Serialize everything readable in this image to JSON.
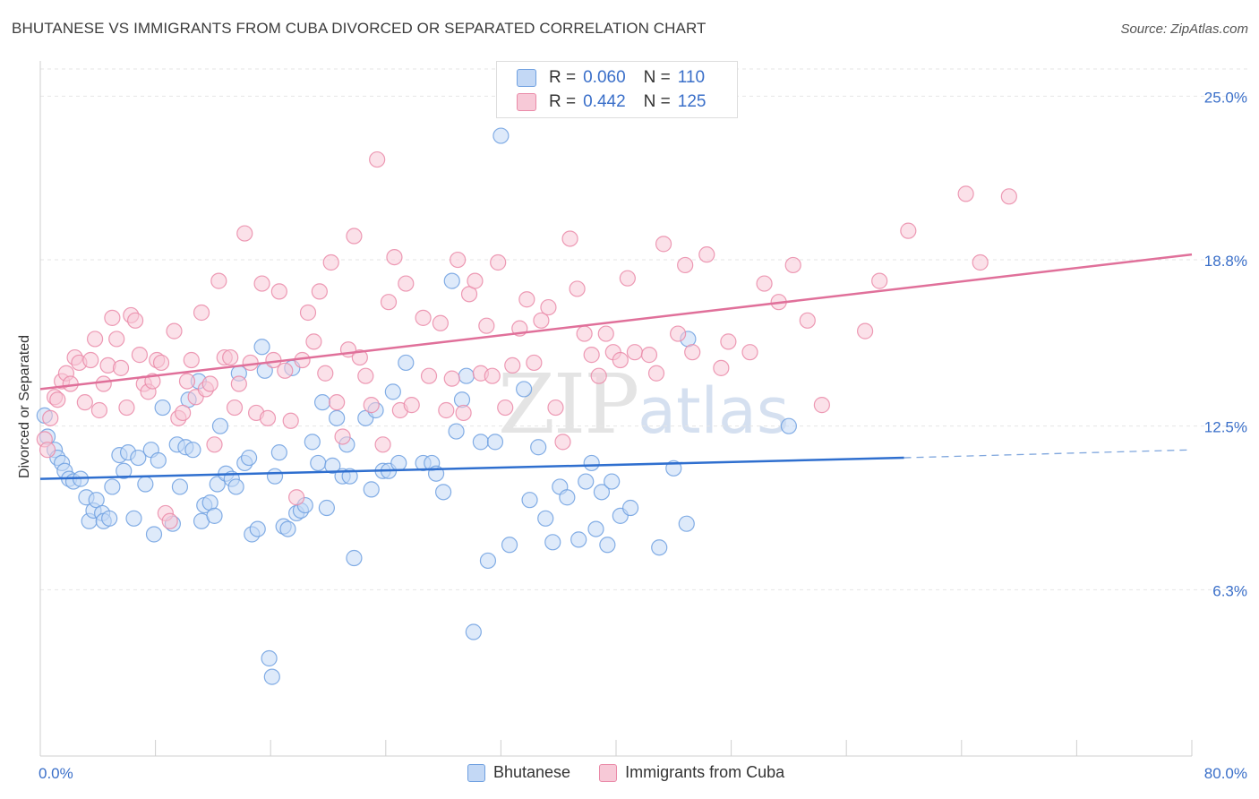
{
  "title": "BHUTANESE VS IMMIGRANTS FROM CUBA DIVORCED OR SEPARATED CORRELATION CHART",
  "source": "Source: ZipAtlas.com",
  "watermark": {
    "zip": "ZIP",
    "atlas": "atlas"
  },
  "stats": [
    {
      "r_label": "R =",
      "r_value": "0.060",
      "n_label": "N =",
      "n_value": "110",
      "color": "#a9c8f2"
    },
    {
      "r_label": "R =",
      "r_value": "0.442",
      "n_label": "N =",
      "n_value": "125",
      "color": "#f7b8cb"
    }
  ],
  "chart_data": {
    "type": "scatter",
    "title": "BHUTANESE VS IMMIGRANTS FROM CUBA DIVORCED OR SEPARATED CORRELATION CHART",
    "xlabel": "",
    "ylabel": "Divorced or Separated",
    "xlim": [
      0,
      80
    ],
    "ylim": [
      0,
      26.2
    ],
    "x_tick_labels": [
      "0.0%",
      "80.0%"
    ],
    "y_ticks": [
      6.3,
      12.5,
      18.8,
      25.0
    ],
    "y_tick_labels": [
      "6.3%",
      "12.5%",
      "18.8%",
      "25.0%"
    ],
    "grid": true,
    "legend_position": "bottom",
    "series": [
      {
        "name": "Bhutanese",
        "color": "#6fa0e0",
        "fill": "#c3d8f5",
        "trend": {
          "x": [
            0,
            60
          ],
          "y": [
            10.5,
            11.3
          ],
          "dash_to": [
            80,
            11.6
          ]
        },
        "points": [
          [
            0.3,
            12.9
          ],
          [
            0.5,
            12.1
          ],
          [
            1.0,
            11.6
          ],
          [
            1.2,
            11.3
          ],
          [
            1.5,
            11.1
          ],
          [
            1.7,
            10.8
          ],
          [
            2.0,
            10.5
          ],
          [
            2.3,
            10.4
          ],
          [
            2.8,
            10.5
          ],
          [
            3.2,
            9.8
          ],
          [
            3.4,
            8.9
          ],
          [
            3.7,
            9.3
          ],
          [
            3.9,
            9.7
          ],
          [
            4.3,
            9.2
          ],
          [
            4.4,
            8.9
          ],
          [
            4.8,
            9.0
          ],
          [
            5.0,
            10.2
          ],
          [
            5.5,
            11.4
          ],
          [
            5.8,
            10.8
          ],
          [
            6.1,
            11.5
          ],
          [
            6.5,
            9.0
          ],
          [
            6.8,
            11.3
          ],
          [
            7.3,
            10.3
          ],
          [
            7.7,
            11.6
          ],
          [
            7.9,
            8.4
          ],
          [
            8.2,
            11.2
          ],
          [
            8.5,
            13.2
          ],
          [
            9.2,
            8.8
          ],
          [
            9.5,
            11.8
          ],
          [
            9.7,
            10.2
          ],
          [
            10.1,
            11.7
          ],
          [
            10.3,
            13.5
          ],
          [
            10.6,
            11.6
          ],
          [
            11.0,
            14.2
          ],
          [
            11.2,
            8.9
          ],
          [
            11.4,
            9.5
          ],
          [
            11.8,
            9.6
          ],
          [
            12.1,
            9.1
          ],
          [
            12.3,
            10.3
          ],
          [
            12.5,
            12.5
          ],
          [
            12.9,
            10.7
          ],
          [
            13.3,
            10.5
          ],
          [
            13.6,
            10.2
          ],
          [
            13.8,
            14.5
          ],
          [
            14.2,
            11.1
          ],
          [
            14.5,
            11.3
          ],
          [
            14.7,
            8.4
          ],
          [
            15.1,
            8.6
          ],
          [
            15.4,
            15.5
          ],
          [
            15.6,
            14.6
          ],
          [
            15.9,
            3.7
          ],
          [
            16.1,
            3.0
          ],
          [
            16.3,
            10.6
          ],
          [
            16.6,
            11.5
          ],
          [
            16.9,
            8.7
          ],
          [
            17.2,
            8.6
          ],
          [
            17.5,
            14.7
          ],
          [
            17.8,
            9.2
          ],
          [
            18.1,
            9.3
          ],
          [
            18.4,
            9.5
          ],
          [
            18.9,
            11.9
          ],
          [
            19.3,
            11.1
          ],
          [
            19.6,
            13.4
          ],
          [
            19.9,
            9.4
          ],
          [
            20.3,
            11.0
          ],
          [
            20.6,
            12.8
          ],
          [
            21.0,
            10.6
          ],
          [
            21.3,
            11.8
          ],
          [
            21.5,
            10.6
          ],
          [
            21.8,
            7.5
          ],
          [
            22.6,
            12.8
          ],
          [
            23.0,
            10.1
          ],
          [
            23.3,
            13.1
          ],
          [
            23.8,
            10.8
          ],
          [
            24.2,
            10.8
          ],
          [
            24.5,
            13.8
          ],
          [
            24.9,
            11.1
          ],
          [
            25.4,
            14.9
          ],
          [
            26.6,
            11.1
          ],
          [
            27.2,
            11.1
          ],
          [
            27.5,
            10.7
          ],
          [
            28.0,
            10.0
          ],
          [
            28.6,
            18.0
          ],
          [
            28.9,
            12.3
          ],
          [
            29.3,
            13.5
          ],
          [
            29.6,
            14.4
          ],
          [
            30.1,
            4.7
          ],
          [
            30.6,
            11.9
          ],
          [
            31.1,
            7.4
          ],
          [
            31.6,
            11.9
          ],
          [
            32.0,
            23.5
          ],
          [
            32.6,
            8.0
          ],
          [
            33.6,
            13.9
          ],
          [
            34.0,
            9.7
          ],
          [
            34.6,
            11.7
          ],
          [
            35.1,
            9.0
          ],
          [
            35.6,
            8.1
          ],
          [
            36.1,
            10.2
          ],
          [
            36.6,
            9.8
          ],
          [
            37.4,
            8.2
          ],
          [
            37.9,
            10.4
          ],
          [
            38.3,
            11.1
          ],
          [
            38.6,
            8.6
          ],
          [
            39.0,
            10.0
          ],
          [
            39.4,
            8.0
          ],
          [
            39.7,
            10.4
          ],
          [
            40.3,
            9.1
          ],
          [
            41.0,
            9.4
          ],
          [
            43.0,
            7.9
          ],
          [
            44.0,
            10.9
          ],
          [
            44.9,
            8.8
          ],
          [
            45.0,
            15.8
          ],
          [
            52.0,
            12.5
          ]
        ]
      },
      {
        "name": "Immigrants from Cuba",
        "color": "#ea8aa8",
        "fill": "#f7c9d7",
        "trend": {
          "x": [
            0,
            80
          ],
          "y": [
            13.9,
            19.0
          ]
        },
        "points": [
          [
            0.3,
            12.0
          ],
          [
            0.5,
            11.6
          ],
          [
            0.7,
            12.8
          ],
          [
            1.0,
            13.6
          ],
          [
            1.2,
            13.5
          ],
          [
            1.5,
            14.2
          ],
          [
            1.8,
            14.5
          ],
          [
            2.1,
            14.1
          ],
          [
            2.4,
            15.1
          ],
          [
            2.7,
            14.9
          ],
          [
            3.1,
            13.4
          ],
          [
            3.5,
            15.0
          ],
          [
            3.8,
            15.8
          ],
          [
            4.1,
            13.1
          ],
          [
            4.4,
            14.1
          ],
          [
            4.7,
            14.8
          ],
          [
            5.0,
            16.6
          ],
          [
            5.3,
            15.8
          ],
          [
            5.6,
            14.7
          ],
          [
            6.0,
            13.2
          ],
          [
            6.3,
            16.7
          ],
          [
            6.6,
            16.5
          ],
          [
            6.9,
            15.2
          ],
          [
            7.2,
            14.1
          ],
          [
            7.5,
            13.8
          ],
          [
            7.8,
            14.2
          ],
          [
            8.1,
            15.0
          ],
          [
            8.4,
            14.9
          ],
          [
            8.7,
            9.2
          ],
          [
            9.0,
            8.9
          ],
          [
            9.3,
            16.1
          ],
          [
            9.6,
            12.8
          ],
          [
            9.9,
            13.0
          ],
          [
            10.2,
            14.2
          ],
          [
            10.5,
            15.0
          ],
          [
            10.8,
            13.6
          ],
          [
            11.2,
            16.8
          ],
          [
            11.5,
            13.9
          ],
          [
            11.8,
            14.1
          ],
          [
            12.1,
            11.8
          ],
          [
            12.4,
            18.0
          ],
          [
            12.8,
            15.1
          ],
          [
            13.2,
            15.1
          ],
          [
            13.5,
            13.2
          ],
          [
            13.8,
            14.1
          ],
          [
            14.2,
            19.8
          ],
          [
            14.6,
            14.9
          ],
          [
            15.0,
            13.0
          ],
          [
            15.4,
            17.9
          ],
          [
            15.8,
            12.8
          ],
          [
            16.2,
            15.0
          ],
          [
            16.6,
            17.6
          ],
          [
            17.0,
            14.6
          ],
          [
            17.4,
            12.7
          ],
          [
            17.8,
            9.8
          ],
          [
            18.2,
            15.0
          ],
          [
            18.6,
            16.8
          ],
          [
            19.0,
            15.7
          ],
          [
            19.4,
            17.6
          ],
          [
            19.8,
            14.5
          ],
          [
            20.2,
            18.7
          ],
          [
            20.6,
            13.4
          ],
          [
            21.0,
            12.1
          ],
          [
            21.4,
            15.4
          ],
          [
            21.8,
            19.7
          ],
          [
            22.2,
            15.1
          ],
          [
            22.6,
            14.4
          ],
          [
            23.0,
            13.3
          ],
          [
            23.4,
            22.6
          ],
          [
            23.8,
            11.8
          ],
          [
            24.2,
            17.2
          ],
          [
            24.6,
            18.9
          ],
          [
            25.0,
            13.1
          ],
          [
            25.4,
            17.9
          ],
          [
            25.8,
            13.3
          ],
          [
            26.6,
            16.6
          ],
          [
            27.0,
            14.4
          ],
          [
            27.8,
            16.4
          ],
          [
            28.2,
            13.1
          ],
          [
            28.6,
            14.3
          ],
          [
            29.0,
            18.8
          ],
          [
            29.4,
            13.0
          ],
          [
            29.8,
            17.5
          ],
          [
            30.2,
            18.0
          ],
          [
            30.6,
            14.5
          ],
          [
            31.0,
            16.3
          ],
          [
            31.4,
            14.4
          ],
          [
            31.8,
            18.7
          ],
          [
            32.3,
            13.2
          ],
          [
            32.8,
            14.8
          ],
          [
            33.3,
            16.2
          ],
          [
            33.8,
            17.3
          ],
          [
            34.3,
            14.9
          ],
          [
            34.8,
            16.5
          ],
          [
            35.3,
            17.0
          ],
          [
            35.8,
            13.2
          ],
          [
            36.3,
            11.9
          ],
          [
            36.8,
            19.6
          ],
          [
            37.3,
            17.7
          ],
          [
            37.8,
            16.0
          ],
          [
            38.3,
            15.2
          ],
          [
            38.8,
            14.4
          ],
          [
            39.3,
            16.0
          ],
          [
            39.8,
            15.3
          ],
          [
            40.3,
            15.0
          ],
          [
            40.8,
            18.1
          ],
          [
            41.3,
            15.3
          ],
          [
            42.3,
            15.2
          ],
          [
            42.8,
            14.5
          ],
          [
            43.3,
            19.4
          ],
          [
            44.3,
            16.0
          ],
          [
            44.8,
            18.6
          ],
          [
            45.3,
            15.3
          ],
          [
            46.3,
            19.0
          ],
          [
            47.3,
            14.7
          ],
          [
            47.8,
            15.7
          ],
          [
            49.3,
            15.3
          ],
          [
            50.3,
            17.9
          ],
          [
            51.3,
            17.2
          ],
          [
            52.3,
            18.6
          ],
          [
            53.3,
            16.5
          ],
          [
            54.3,
            13.3
          ],
          [
            57.3,
            16.1
          ],
          [
            58.3,
            18.0
          ],
          [
            60.3,
            19.9
          ],
          [
            64.3,
            21.3
          ],
          [
            65.3,
            18.7
          ],
          [
            67.3,
            21.2
          ]
        ]
      }
    ]
  }
}
